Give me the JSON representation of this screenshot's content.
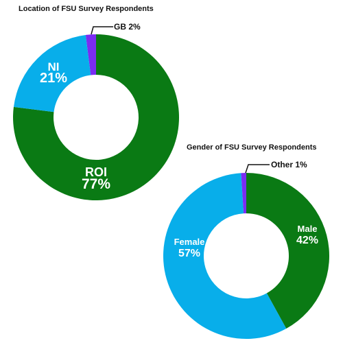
{
  "chart_data": [
    {
      "type": "pie",
      "variant": "donut",
      "title": "Location of FSU Survey Respondents",
      "slices": [
        {
          "label": "ROI",
          "value": 77,
          "value_label": "77%",
          "color": "#0a7a14"
        },
        {
          "label": "NI",
          "value": 21,
          "value_label": "21%",
          "color": "#08aeea"
        },
        {
          "label": "GB",
          "value": 2,
          "value_label": "2%",
          "color": "#7a2cf2"
        }
      ]
    },
    {
      "type": "pie",
      "variant": "donut",
      "title": "Gender of FSU Survey Respondents",
      "slices": [
        {
          "label": "Male",
          "value": 42,
          "value_label": "42%",
          "color": "#0a7a14"
        },
        {
          "label": "Female",
          "value": 57,
          "value_label": "57%",
          "color": "#08aeea"
        },
        {
          "label": "Other",
          "value": 1,
          "value_label": "1%",
          "color": "#7a2cf2"
        }
      ]
    }
  ]
}
